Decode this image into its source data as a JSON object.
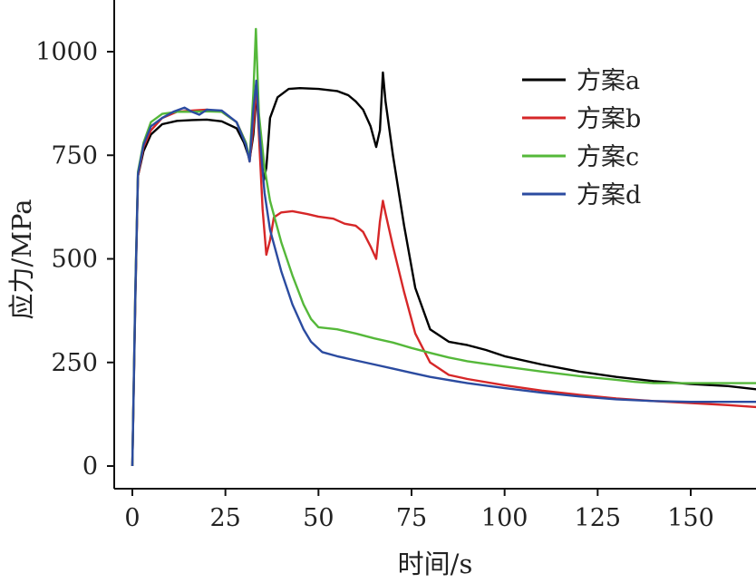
{
  "chart_data": {
    "type": "line",
    "xlabel": "时间/s",
    "ylabel": "应力/MPa",
    "xlim": [
      -5,
      170
    ],
    "ylim": [
      -30,
      1120
    ],
    "xticks": [
      0,
      25,
      50,
      75,
      100,
      125,
      150
    ],
    "yticks": [
      0,
      250,
      500,
      750,
      1000
    ],
    "grid": false,
    "legend_position": "top-right",
    "series": [
      {
        "name": "方案a",
        "color": "#000000",
        "points": [
          [
            0,
            0
          ],
          [
            0.8,
            400
          ],
          [
            1.5,
            700
          ],
          [
            3,
            760
          ],
          [
            5,
            800
          ],
          [
            8,
            825
          ],
          [
            12,
            833
          ],
          [
            16,
            835
          ],
          [
            20,
            836
          ],
          [
            24,
            832
          ],
          [
            28,
            815
          ],
          [
            30,
            780
          ],
          [
            31.5,
            740
          ],
          [
            32.5,
            800
          ],
          [
            33.5,
            920
          ],
          [
            34.5,
            760
          ],
          [
            35.3,
            690
          ],
          [
            36,
            720
          ],
          [
            37,
            840
          ],
          [
            39,
            890
          ],
          [
            42,
            910
          ],
          [
            45,
            912
          ],
          [
            50,
            910
          ],
          [
            55,
            905
          ],
          [
            58,
            895
          ],
          [
            60,
            880
          ],
          [
            62,
            860
          ],
          [
            64,
            820
          ],
          [
            65.5,
            770
          ],
          [
            66.5,
            810
          ],
          [
            67.3,
            950
          ],
          [
            68,
            880
          ],
          [
            70,
            750
          ],
          [
            73,
            580
          ],
          [
            76,
            430
          ],
          [
            80,
            330
          ],
          [
            85,
            300
          ],
          [
            90,
            292
          ],
          [
            95,
            280
          ],
          [
            100,
            265
          ],
          [
            110,
            245
          ],
          [
            120,
            228
          ],
          [
            130,
            215
          ],
          [
            140,
            205
          ],
          [
            150,
            198
          ],
          [
            160,
            193
          ],
          [
            168,
            185
          ]
        ]
      },
      {
        "name": "方案b",
        "color": "#d62728",
        "points": [
          [
            0,
            0
          ],
          [
            0.8,
            420
          ],
          [
            1.5,
            700
          ],
          [
            3,
            770
          ],
          [
            5,
            810
          ],
          [
            8,
            840
          ],
          [
            12,
            855
          ],
          [
            16,
            858
          ],
          [
            20,
            860
          ],
          [
            24,
            855
          ],
          [
            28,
            830
          ],
          [
            30.5,
            780
          ],
          [
            31.5,
            735
          ],
          [
            32.5,
            820
          ],
          [
            33.3,
            920
          ],
          [
            34,
            800
          ],
          [
            35,
            620
          ],
          [
            36,
            510
          ],
          [
            37,
            545
          ],
          [
            38,
            600
          ],
          [
            40,
            612
          ],
          [
            43,
            615
          ],
          [
            47,
            608
          ],
          [
            50,
            602
          ],
          [
            54,
            597
          ],
          [
            57,
            585
          ],
          [
            60,
            580
          ],
          [
            62,
            565
          ],
          [
            64,
            530
          ],
          [
            65.5,
            500
          ],
          [
            66.5,
            590
          ],
          [
            67.3,
            640
          ],
          [
            68,
            610
          ],
          [
            70,
            530
          ],
          [
            73,
            420
          ],
          [
            76,
            320
          ],
          [
            80,
            250
          ],
          [
            85,
            220
          ],
          [
            90,
            210
          ],
          [
            100,
            195
          ],
          [
            110,
            182
          ],
          [
            120,
            172
          ],
          [
            130,
            163
          ],
          [
            140,
            157
          ],
          [
            150,
            152
          ],
          [
            160,
            147
          ],
          [
            168,
            142
          ]
        ]
      },
      {
        "name": "方案c",
        "color": "#55b83a",
        "points": [
          [
            0,
            0
          ],
          [
            0.8,
            430
          ],
          [
            1.5,
            710
          ],
          [
            3,
            780
          ],
          [
            5,
            830
          ],
          [
            8,
            850
          ],
          [
            12,
            855
          ],
          [
            16,
            855
          ],
          [
            20,
            856
          ],
          [
            24,
            855
          ],
          [
            28,
            830
          ],
          [
            30.5,
            780
          ],
          [
            31.5,
            740
          ],
          [
            32.5,
            900
          ],
          [
            33.2,
            1055
          ],
          [
            34,
            850
          ],
          [
            35.5,
            720
          ],
          [
            37,
            640
          ],
          [
            40,
            540
          ],
          [
            43,
            460
          ],
          [
            46,
            390
          ],
          [
            48,
            355
          ],
          [
            50,
            335
          ],
          [
            55,
            330
          ],
          [
            60,
            320
          ],
          [
            65,
            308
          ],
          [
            70,
            298
          ],
          [
            75,
            285
          ],
          [
            80,
            273
          ],
          [
            85,
            262
          ],
          [
            90,
            253
          ],
          [
            100,
            240
          ],
          [
            110,
            228
          ],
          [
            120,
            217
          ],
          [
            130,
            208
          ],
          [
            135,
            203
          ],
          [
            140,
            200
          ],
          [
            150,
            200
          ],
          [
            160,
            200
          ],
          [
            168,
            200
          ]
        ]
      },
      {
        "name": "方案d",
        "color": "#2b4ba0",
        "points": [
          [
            0,
            0
          ],
          [
            0.8,
            420
          ],
          [
            1.5,
            705
          ],
          [
            3,
            775
          ],
          [
            5,
            820
          ],
          [
            8,
            840
          ],
          [
            11,
            855
          ],
          [
            14,
            865
          ],
          [
            16,
            855
          ],
          [
            18,
            848
          ],
          [
            20,
            860
          ],
          [
            24,
            858
          ],
          [
            28,
            830
          ],
          [
            30.5,
            775
          ],
          [
            31.5,
            735
          ],
          [
            32.5,
            860
          ],
          [
            33.3,
            930
          ],
          [
            34,
            820
          ],
          [
            35.5,
            660
          ],
          [
            37,
            570
          ],
          [
            40,
            470
          ],
          [
            43,
            390
          ],
          [
            46,
            330
          ],
          [
            48,
            300
          ],
          [
            51,
            275
          ],
          [
            55,
            265
          ],
          [
            60,
            255
          ],
          [
            65,
            245
          ],
          [
            70,
            235
          ],
          [
            75,
            225
          ],
          [
            80,
            215
          ],
          [
            90,
            200
          ],
          [
            100,
            188
          ],
          [
            110,
            177
          ],
          [
            120,
            168
          ],
          [
            130,
            161
          ],
          [
            140,
            157
          ],
          [
            150,
            155
          ],
          [
            160,
            155
          ],
          [
            168,
            155
          ]
        ]
      }
    ]
  }
}
